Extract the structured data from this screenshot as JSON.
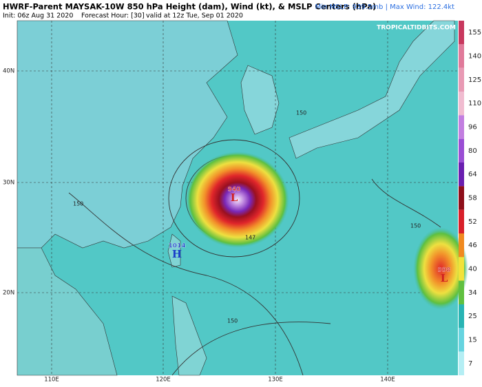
{
  "header": {
    "title": "HWRF-Parent MAYSAK-10W 850 hPa Height (dam), Wind (kt), & MSLP Centers (hPa)",
    "init": "Init: 06z Aug 31 2020",
    "forecast_hour": "Forecast Hour: [30]",
    "valid": "valid at 12z Tue, Sep 01 2020",
    "stats": "Min MSLP: 939.5mb | Max Wind: 122.4kt",
    "site": "TROPICALTIDBITS.COM"
  },
  "map": {
    "lat_labels": [
      "40N",
      "30N",
      "20N"
    ],
    "lon_labels": [
      "110E",
      "120E",
      "130E",
      "140E"
    ],
    "centers": [
      {
        "value": "940",
        "symbol": "L"
      },
      {
        "value": "1014",
        "symbol": "H"
      },
      {
        "value": "998",
        "symbol": "L"
      }
    ],
    "contour_labels": [
      "150",
      "150",
      "150",
      "147",
      "150"
    ]
  },
  "colorbar": {
    "labels": [
      155,
      140,
      125,
      110,
      96,
      80,
      64,
      58,
      52,
      46,
      40,
      34,
      25,
      15,
      7
    ],
    "colors": [
      "#c8385e",
      "#e07a9a",
      "#e89ab4",
      "#f0bcd0",
      "#c27ee0",
      "#9a4ed4",
      "#6a1fb0",
      "#8e0f1a",
      "#d8202a",
      "#f08a20",
      "#f2e23a",
      "#60c040",
      "#28b4b4",
      "#66d4e0",
      "#b4eef4"
    ]
  }
}
